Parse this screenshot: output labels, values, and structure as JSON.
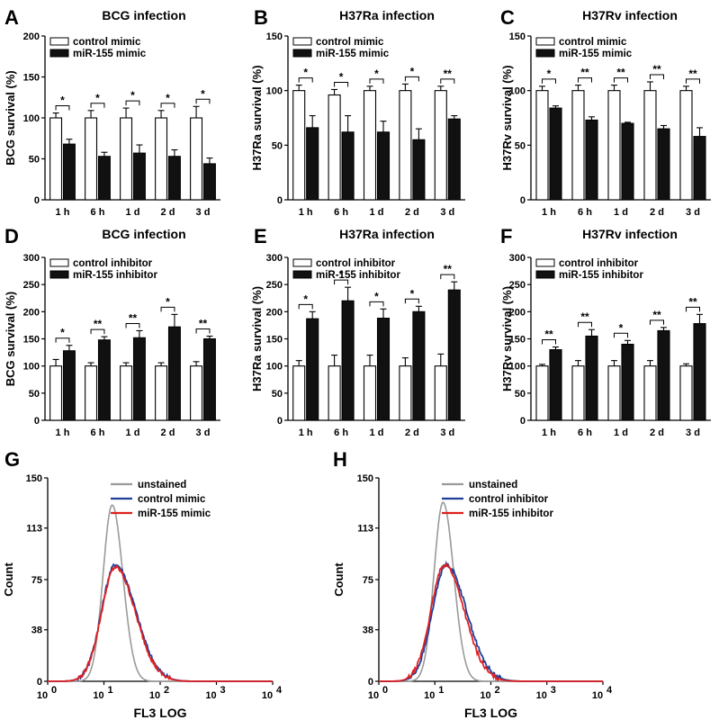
{
  "colors": {
    "control_bar": "#ffffff",
    "treated_bar": "#111111",
    "unstained": "#9a9a9a",
    "control_line": "#1f3f9a",
    "treated_line": "#e02020"
  },
  "chart_data": [
    {
      "panel": "A",
      "type": "bar",
      "title": "BCG infection",
      "ylabel": "BCG survival (%)",
      "ylim": [
        0,
        200
      ],
      "yticks": [
        "0",
        "50",
        "100",
        "150",
        "200"
      ],
      "categories": [
        "1 h",
        "6 h",
        "1 d",
        "2 d",
        "3 d"
      ],
      "series": [
        {
          "name": "control mimic",
          "values": [
            100,
            100,
            100,
            100,
            100
          ],
          "errors": [
            6,
            9,
            12,
            9,
            14
          ]
        },
        {
          "name": "miR-155 mimic",
          "values": [
            68,
            53,
            57,
            53,
            44
          ],
          "errors": [
            6,
            5,
            10,
            8,
            7
          ]
        }
      ],
      "significance": [
        "*",
        "*",
        "*",
        "*",
        "*"
      ]
    },
    {
      "panel": "B",
      "type": "bar",
      "title": "H37Ra infection",
      "ylabel": "H37Ra survival (%)",
      "ylim": [
        0,
        150
      ],
      "yticks": [
        "0",
        "50",
        "100",
        "150"
      ],
      "categories": [
        "1 h",
        "6 h",
        "1 d",
        "2 d",
        "3 d"
      ],
      "series": [
        {
          "name": "control mimic",
          "values": [
            100,
            96,
            100,
            100,
            100
          ],
          "errors": [
            5,
            5,
            4,
            6,
            4
          ]
        },
        {
          "name": "miR-155 mimic",
          "values": [
            66,
            62,
            62,
            55,
            74
          ],
          "errors": [
            11,
            15,
            10,
            10,
            3
          ]
        }
      ],
      "significance": [
        "*",
        "*",
        "*",
        "*",
        "**"
      ]
    },
    {
      "panel": "C",
      "type": "bar",
      "title": "H37Rv infection",
      "ylabel": "H37Rv survival (%)",
      "ylim": [
        0,
        150
      ],
      "yticks": [
        "0",
        "50",
        "100",
        "150"
      ],
      "categories": [
        "1 h",
        "6 h",
        "1 d",
        "2 d",
        "3 d"
      ],
      "series": [
        {
          "name": "control mimic",
          "values": [
            100,
            100,
            100,
            100,
            100
          ],
          "errors": [
            4,
            5,
            5,
            8,
            4
          ]
        },
        {
          "name": "miR-155 mimic",
          "values": [
            84,
            73,
            70,
            65,
            58
          ],
          "errors": [
            2,
            3,
            1,
            3,
            8
          ]
        }
      ],
      "significance": [
        "*",
        "**",
        "**",
        "**",
        "**"
      ]
    },
    {
      "panel": "D",
      "type": "bar",
      "title": "BCG infection",
      "ylabel": "BCG survival (%)",
      "ylim": [
        0,
        300
      ],
      "yticks": [
        "0",
        "50",
        "100",
        "150",
        "200",
        "250",
        "300"
      ],
      "categories": [
        "1 h",
        "6 h",
        "1 d",
        "2 d",
        "3 d"
      ],
      "series": [
        {
          "name": "control inhibitor",
          "values": [
            100,
            100,
            100,
            100,
            100
          ],
          "errors": [
            12,
            6,
            6,
            6,
            8
          ]
        },
        {
          "name": "miR-155 inhibitor",
          "values": [
            128,
            148,
            152,
            172,
            150
          ],
          "errors": [
            10,
            6,
            13,
            23,
            5
          ]
        }
      ],
      "significance": [
        "*",
        "**",
        "**",
        "*",
        "**"
      ]
    },
    {
      "panel": "E",
      "type": "bar",
      "title": "H37Ra infection",
      "ylabel": "H37Ra survival (%)",
      "ylim": [
        0,
        300
      ],
      "yticks": [
        "0",
        "50",
        "100",
        "150",
        "200",
        "250",
        "300"
      ],
      "categories": [
        "1 h",
        "6 h",
        "1 d",
        "2 d",
        "3 d"
      ],
      "series": [
        {
          "name": "control inhibitor",
          "values": [
            100,
            100,
            100,
            100,
            100
          ],
          "errors": [
            10,
            20,
            20,
            15,
            22
          ]
        },
        {
          "name": "miR-155 inhibitor",
          "values": [
            187,
            220,
            188,
            200,
            240
          ],
          "errors": [
            13,
            25,
            17,
            10,
            15
          ]
        }
      ],
      "significance": [
        "*",
        "*",
        "*",
        "*",
        "**"
      ]
    },
    {
      "panel": "F",
      "type": "bar",
      "title": "H37Rv infection",
      "ylabel": "H37Rv survival (%)",
      "ylim": [
        0,
        300
      ],
      "yticks": [
        "0",
        "50",
        "100",
        "150",
        "200",
        "250",
        "300"
      ],
      "categories": [
        "1 h",
        "6 h",
        "1 d",
        "2 d",
        "3 d"
      ],
      "series": [
        {
          "name": "control inhibitor",
          "values": [
            100,
            100,
            100,
            100,
            100
          ],
          "errors": [
            3,
            10,
            10,
            10,
            4
          ]
        },
        {
          "name": "miR-155 inhibitor",
          "values": [
            130,
            155,
            140,
            165,
            178
          ],
          "errors": [
            5,
            12,
            7,
            6,
            17
          ]
        }
      ],
      "significance": [
        "**",
        "**",
        "*",
        "**",
        "**"
      ]
    },
    {
      "panel": "G",
      "type": "line",
      "xlabel": "FL3 LOG",
      "ylabel": "Count",
      "xscale": "log",
      "xlim": [
        1,
        10000
      ],
      "ylim": [
        0,
        150
      ],
      "yticks": [
        "0",
        "38",
        "75",
        "113",
        "150"
      ],
      "series": [
        {
          "name": "unstained",
          "peak_x": 14,
          "peak_y": 130,
          "width": 0.19,
          "skew": 1.0
        },
        {
          "name": "control mimic",
          "peak_x": 16,
          "peak_y": 86,
          "width": 0.29,
          "skew": 1.25
        },
        {
          "name": "miR-155 mimic",
          "peak_x": 16,
          "peak_y": 84,
          "width": 0.29,
          "skew": 1.22
        }
      ]
    },
    {
      "panel": "H",
      "type": "line",
      "xlabel": "FL3 LOG",
      "ylabel": "Count",
      "xscale": "log",
      "xlim": [
        1,
        10000
      ],
      "ylim": [
        0,
        150
      ],
      "yticks": [
        "0",
        "38",
        "75",
        "113",
        "150"
      ],
      "series": [
        {
          "name": "unstained",
          "peak_x": 14,
          "peak_y": 132,
          "width": 0.19,
          "skew": 1.0
        },
        {
          "name": "control inhibitor",
          "peak_x": 16,
          "peak_y": 86,
          "width": 0.29,
          "skew": 1.25
        },
        {
          "name": "miR-155 inhibitor",
          "peak_x": 15,
          "peak_y": 86,
          "width": 0.29,
          "skew": 1.2
        }
      ]
    }
  ]
}
